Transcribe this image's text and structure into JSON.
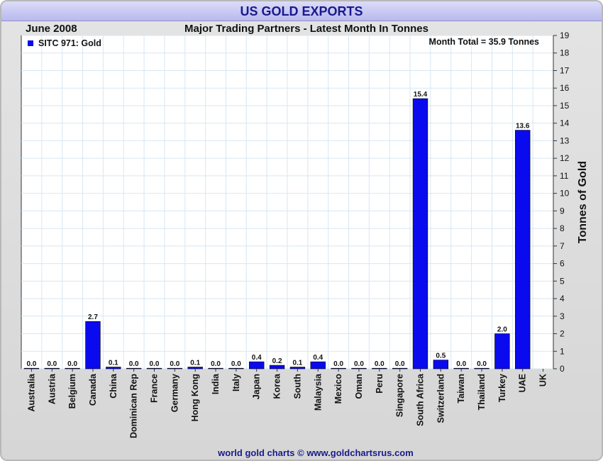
{
  "header": {
    "title": "US GOLD EXPORTS"
  },
  "chart_data": {
    "type": "bar",
    "title": "Major Trading Partners - Latest Month In Tonnes",
    "period": "June 2008",
    "annotation": "Month Total = 35.9 Tonnes",
    "xlabel": "",
    "ylabel": "Tonnes of Gold",
    "ylim": [
      0,
      19
    ],
    "yticks": [
      0,
      1,
      2,
      3,
      4,
      5,
      6,
      7,
      8,
      9,
      10,
      11,
      12,
      13,
      14,
      15,
      16,
      17,
      18,
      19
    ],
    "grid": true,
    "legend": {
      "position": "top-left",
      "entries": [
        {
          "name": "SITC 971: Gold",
          "color": "#0a0aee"
        }
      ]
    },
    "categories": [
      "Australia",
      "Austria",
      "Belgium",
      "Canada",
      "China",
      "Dominican Rep",
      "France",
      "Germany",
      "Hong Kong",
      "India",
      "Italy",
      "Japan",
      "Korea",
      "South",
      "Malaysia",
      "Mexico",
      "Oman",
      "Peru",
      "Singapore",
      "South Africa",
      "Switzerland",
      "Taiwan",
      "Thailand",
      "Turkey",
      "UAE",
      "UK"
    ],
    "series": [
      {
        "name": "SITC 971: Gold",
        "color": "#0a0aee",
        "values": [
          0.0,
          0.0,
          0.0,
          2.7,
          0.1,
          0.0,
          0.0,
          0.0,
          0.1,
          0.0,
          0.0,
          0.4,
          0.2,
          0.1,
          0.4,
          0.0,
          0.0,
          0.0,
          0.0,
          15.4,
          0.5,
          0.0,
          0.0,
          2.0,
          13.6,
          null
        ],
        "labels": [
          "0.0",
          "0.0",
          "0.0",
          "2.7",
          "0.1",
          "0.0",
          "0.0",
          "0.0",
          "0.1",
          "0.0",
          "0.0",
          "0.4",
          "0.2",
          "0.1",
          "0.4",
          "0.0",
          "0.0",
          "0.0",
          "0.0",
          "15.4",
          "0.5",
          "0.0",
          "0.0",
          "2.0",
          "13.6",
          ""
        ]
      }
    ]
  },
  "footer": {
    "credit": "world gold charts © www.goldchartsrus.com"
  }
}
